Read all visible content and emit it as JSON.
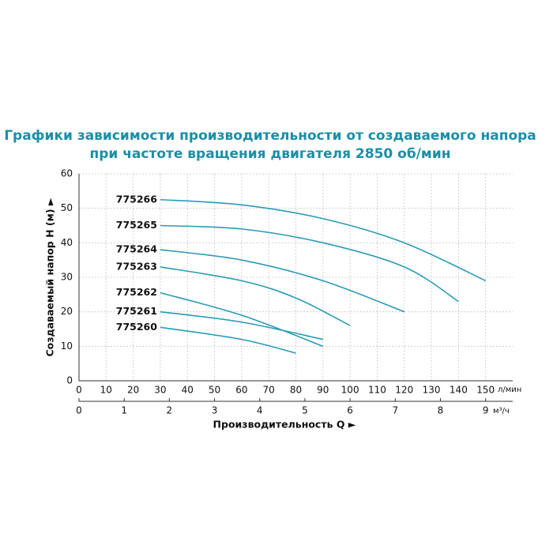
{
  "chart_data": {
    "type": "line",
    "title": [
      "Графики зависимости производительности от создаваемого напора",
      "при частоте вращения двигателя 2850 об/мин"
    ],
    "ylabel": "Создаваемый напор H (м) ►",
    "xlabel": "Производительность Q ►",
    "xunit": "л/мин",
    "x2unit": "м³/ч",
    "xlim": [
      0,
      160
    ],
    "xticks": [
      0,
      10,
      20,
      30,
      40,
      50,
      60,
      70,
      80,
      90,
      100,
      110,
      120,
      130,
      140,
      150
    ],
    "x2lim": [
      0,
      9.6
    ],
    "x2ticks": [
      0,
      1,
      2,
      3,
      4,
      5,
      6,
      7,
      8,
      9
    ],
    "ylim": [
      0,
      60
    ],
    "yticks": [
      0,
      10,
      20,
      30,
      40,
      50,
      60
    ],
    "grid": true,
    "color": "#2a9bb5",
    "series": [
      {
        "name": "775266",
        "x": [
          30,
          60,
          90,
          120,
          150
        ],
        "values": [
          52.5,
          51,
          47,
          40,
          29
        ]
      },
      {
        "name": "775265",
        "x": [
          30,
          60,
          90,
          120,
          140
        ],
        "values": [
          45,
          44,
          40,
          33,
          23
        ]
      },
      {
        "name": "775264",
        "x": [
          30,
          60,
          90,
          120
        ],
        "values": [
          38,
          35,
          29,
          20
        ]
      },
      {
        "name": "775263",
        "x": [
          30,
          60,
          80,
          100
        ],
        "values": [
          33,
          29,
          24,
          16
        ]
      },
      {
        "name": "775262",
        "x": [
          30,
          60,
          90
        ],
        "values": [
          25.5,
          19,
          10
        ]
      },
      {
        "name": "775261",
        "x": [
          30,
          60,
          90
        ],
        "values": [
          20,
          17,
          12
        ]
      },
      {
        "name": "775260",
        "x": [
          30,
          60,
          80
        ],
        "values": [
          15.5,
          12,
          8
        ]
      }
    ]
  }
}
